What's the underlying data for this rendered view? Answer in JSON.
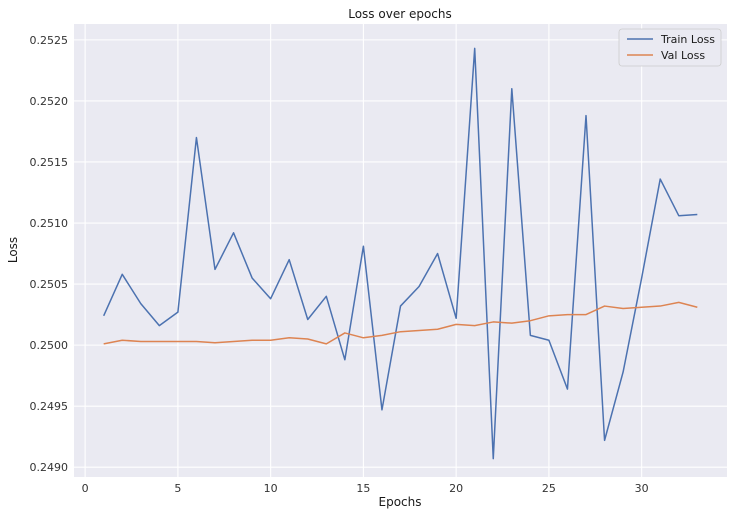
{
  "chart_data": {
    "type": "line",
    "title": "Loss over epochs",
    "xlabel": "Epochs",
    "ylabel": "Loss",
    "xlim": [
      -0.6,
      34.6
    ],
    "ylim": [
      0.24892,
      0.25263
    ],
    "xticks": [
      0,
      5,
      10,
      15,
      20,
      25,
      30
    ],
    "xtick_labels": [
      "0",
      "5",
      "10",
      "15",
      "20",
      "25",
      "30"
    ],
    "yticks": [
      0.249,
      0.2495,
      0.25,
      0.2505,
      0.251,
      0.2515,
      0.252,
      0.2525
    ],
    "ytick_labels": [
      "0.2490",
      "0.2495",
      "0.2500",
      "0.2505",
      "0.2510",
      "0.2515",
      "0.2520",
      "0.2525"
    ],
    "grid": true,
    "legend_position": "top-right",
    "background": "#eaeaf2",
    "x": [
      1,
      2,
      3,
      4,
      5,
      6,
      7,
      8,
      9,
      10,
      11,
      12,
      13,
      14,
      15,
      16,
      17,
      18,
      19,
      20,
      21,
      22,
      23,
      24,
      25,
      26,
      27,
      28,
      29,
      30,
      31,
      32,
      33
    ],
    "series": [
      {
        "name": "Train Loss",
        "color": "#4c72b0",
        "values": [
          0.25024,
          0.25058,
          0.25034,
          0.25016,
          0.25027,
          0.2517,
          0.25062,
          0.25092,
          0.25055,
          0.25038,
          0.2507,
          0.25021,
          0.2504,
          0.24988,
          0.25081,
          0.24947,
          0.25032,
          0.25048,
          0.25075,
          0.25022,
          0.25243,
          0.24907,
          0.2521,
          0.25008,
          0.25004,
          0.24964,
          0.25188,
          0.24922,
          0.24978,
          0.25055,
          0.25136,
          0.25106,
          0.25107
        ]
      },
      {
        "name": "Val Loss",
        "color": "#dd8452",
        "values": [
          0.25001,
          0.25004,
          0.25003,
          0.25003,
          0.25003,
          0.25003,
          0.25002,
          0.25003,
          0.25004,
          0.25004,
          0.25006,
          0.25005,
          0.25001,
          0.2501,
          0.25006,
          0.25008,
          0.25011,
          0.25012,
          0.25013,
          0.25017,
          0.25016,
          0.25019,
          0.25018,
          0.2502,
          0.25024,
          0.25025,
          0.25025,
          0.25032,
          0.2503,
          0.25031,
          0.25032,
          0.25035,
          0.25031
        ]
      }
    ]
  }
}
